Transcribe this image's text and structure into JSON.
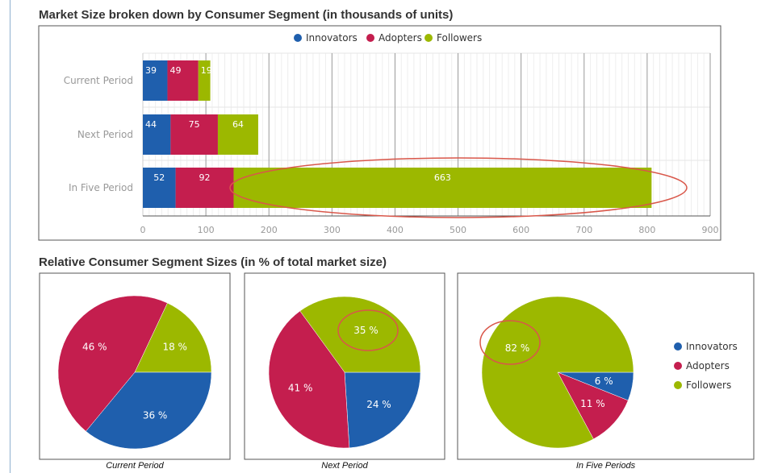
{
  "colors": {
    "innovators": "#1f5fad",
    "adopters": "#c41e4e",
    "followers": "#9cb800",
    "highlight": "#d9574a"
  },
  "bar_section": {
    "title": "Market Size broken down by Consumer Segment (in thousands of units)"
  },
  "pie_section": {
    "title": "Relative Consumer Segment Sizes (in % of total market size)"
  },
  "chart_data": [
    {
      "type": "bar",
      "orientation": "horizontal",
      "stacked": true,
      "title": "Market Size broken down by Consumer Segment (in thousands of units)",
      "categories": [
        "Current Period",
        "Next Period",
        "In Five Period"
      ],
      "series": [
        {
          "name": "Innovators",
          "values": [
            39,
            44,
            52
          ]
        },
        {
          "name": "Adopters",
          "values": [
            49,
            75,
            92
          ]
        },
        {
          "name": "Followers",
          "values": [
            19,
            64,
            663
          ]
        }
      ],
      "xlim": [
        0,
        900
      ],
      "x_ticks": [
        "0",
        "100",
        "200",
        "300",
        "400",
        "500",
        "600",
        "700",
        "800",
        "900"
      ],
      "legend": "top",
      "grid": true
    },
    {
      "type": "pie",
      "caption": "Current Period",
      "slices": [
        {
          "name": "Innovators",
          "value": 36,
          "label": "36 %"
        },
        {
          "name": "Adopters",
          "value": 46,
          "label": "46 %"
        },
        {
          "name": "Followers",
          "value": 18,
          "label": "18 %"
        }
      ]
    },
    {
      "type": "pie",
      "caption": "Next Period",
      "slices": [
        {
          "name": "Innovators",
          "value": 24,
          "label": "24 %"
        },
        {
          "name": "Adopters",
          "value": 41,
          "label": "41 %"
        },
        {
          "name": "Followers",
          "value": 35,
          "label": "35 %"
        }
      ]
    },
    {
      "type": "pie",
      "caption": "In Five Periods",
      "slices": [
        {
          "name": "Innovators",
          "value": 6,
          "label": "6 %"
        },
        {
          "name": "Adopters",
          "value": 11,
          "label": "11 %"
        },
        {
          "name": "Followers",
          "value": 82,
          "label": "82 %"
        }
      ],
      "legend": [
        "Innovators",
        "Adopters",
        "Followers"
      ]
    }
  ]
}
